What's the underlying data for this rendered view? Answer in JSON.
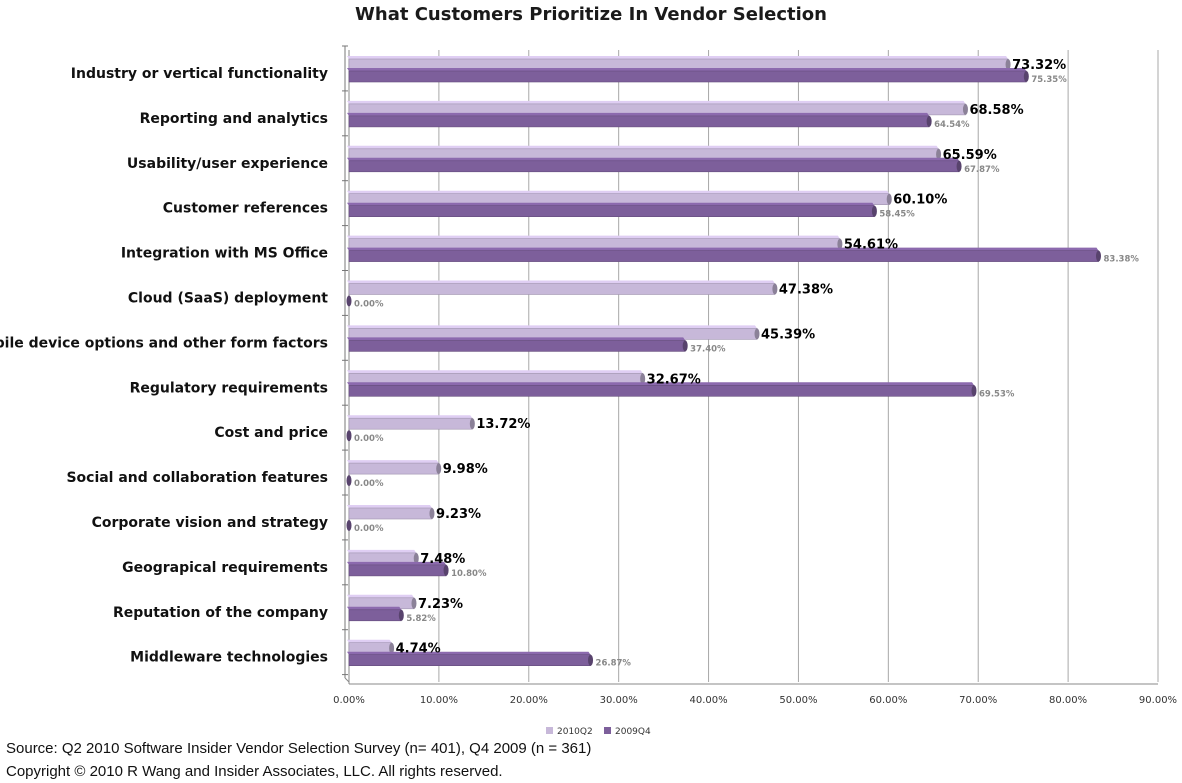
{
  "chart_data": {
    "type": "bar",
    "orientation": "horizontal",
    "title": "What Customers Prioritize In Vendor Selection",
    "categories": [
      "Industry or vertical functionality",
      "Reporting and analytics",
      "Usability/user experience",
      "Customer references",
      "Integration with MS Office",
      "Cloud (SaaS) deployment",
      "Mobile device options and other form factors",
      "Regulatory requirements",
      "Cost and price",
      "Social and collaboration features",
      "Corporate vision and strategy",
      "Geograpical requirements",
      "Reputation of the company",
      "Middleware technologies"
    ],
    "series": [
      {
        "name": "2010Q2",
        "color": "#c7b8d9",
        "values": [
          73.32,
          68.58,
          65.59,
          60.1,
          54.61,
          47.38,
          45.39,
          32.67,
          13.72,
          9.98,
          9.23,
          7.48,
          7.23,
          4.74
        ],
        "labels": [
          "73.32%",
          "68.58%",
          "65.59%",
          "60.10%",
          "54.61%",
          "47.38%",
          "45.39%",
          "32.67%",
          "13.72%",
          "9.98%",
          "9.23%",
          "7.48%",
          "7.23%",
          "4.74%"
        ]
      },
      {
        "name": "2009Q4",
        "color": "#7d5f9b",
        "values": [
          75.35,
          64.54,
          67.87,
          58.45,
          83.38,
          0.0,
          37.4,
          69.53,
          0.0,
          0.0,
          0.0,
          10.8,
          5.82,
          26.87
        ],
        "labels": [
          "75.35%",
          "64.54%",
          "67.87%",
          "58.45%",
          "83.38%",
          "0.00%",
          "37.40%",
          "69.53%",
          "0.00%",
          "0.00%",
          "0.00%",
          "10.80%",
          "5.82%",
          "26.87%"
        ]
      }
    ],
    "x_ticks": [
      "0.00%",
      "10.00%",
      "20.00%",
      "30.00%",
      "40.00%",
      "50.00%",
      "60.00%",
      "70.00%",
      "80.00%",
      "90.00%"
    ],
    "xlim": [
      0,
      90
    ],
    "grid": "vertical",
    "legend_position": "bottom"
  },
  "footer": {
    "source": "Source: Q2 2010 Software Insider Vendor Selection Survey (n= 401), Q4 2009 (n = 361)",
    "copyright": "Copyright © 2010 R Wang and Insider Associates, LLC. All rights reserved."
  }
}
